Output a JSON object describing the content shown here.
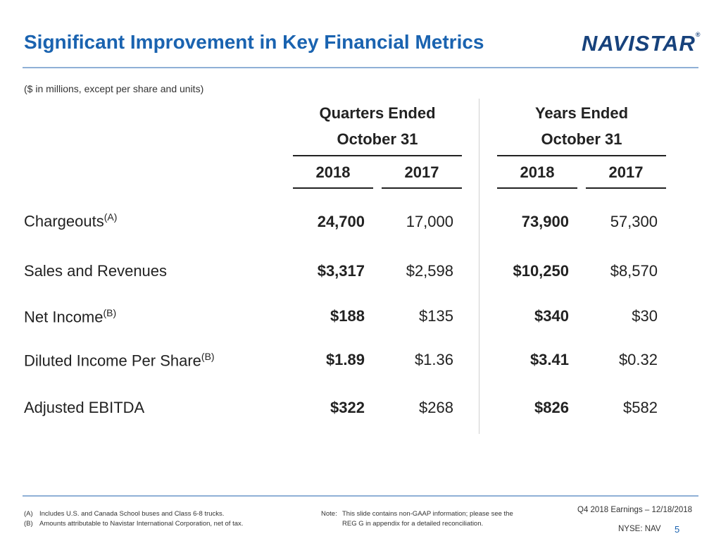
{
  "header": {
    "title": "Significant Improvement in Key Financial Metrics",
    "logo_text": "NAVISTAR",
    "logo_mark": "®"
  },
  "subtitle": "($ in millions, except per share and units)",
  "table": {
    "groups": [
      {
        "line1": "Quarters Ended",
        "line2": "October 31",
        "years": [
          "2018",
          "2017"
        ]
      },
      {
        "line1": "Years Ended",
        "line2": "October 31",
        "years": [
          "2018",
          "2017"
        ]
      }
    ],
    "rows": [
      {
        "label": "Chargeouts",
        "note": "(A)",
        "values": [
          "24,700",
          "17,000",
          "73,900",
          "57,300"
        ]
      },
      {
        "label": "Sales and Revenues",
        "note": "",
        "values": [
          "$3,317",
          "$2,598",
          "$10,250",
          "$8,570"
        ]
      },
      {
        "label": "Net Income",
        "note": "(B)",
        "values": [
          "$188",
          "$135",
          "$340",
          "$30"
        ]
      },
      {
        "label": "Diluted Income Per Share",
        "note": "(B)",
        "values": [
          "$1.89",
          "$1.36",
          "$3.41",
          "$0.32"
        ]
      },
      {
        "label": "Adjusted EBITDA",
        "note": "",
        "values": [
          "$322",
          "$268",
          "$826",
          "$582"
        ]
      }
    ]
  },
  "footer": {
    "notes": [
      {
        "key": "(A)",
        "text": "Includes U.S. and Canada School buses and Class 6-8 trucks."
      },
      {
        "key": "(B)",
        "text": "Amounts attributable to Navistar International Corporation, net of tax."
      }
    ],
    "note_label": "Note:",
    "note_line1": "This slide contains non-GAAP information; please see the",
    "note_line2": "REG G in appendix for a detailed reconciliation.",
    "event": "Q4 2018 Earnings – 12/18/2018",
    "ticker": "NYSE: NAV",
    "page": "5"
  }
}
